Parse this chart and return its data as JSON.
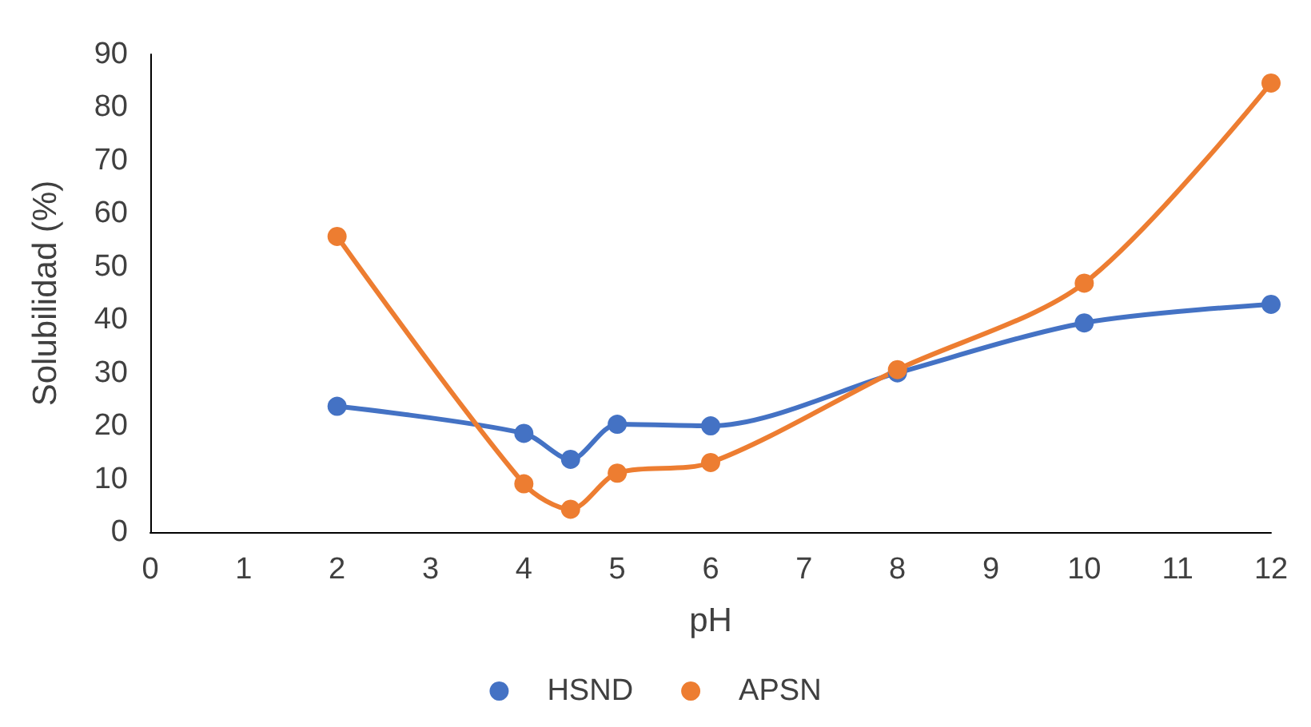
{
  "chart_data": {
    "type": "line",
    "xlabel": "pH",
    "ylabel": "Solubilidad (%)",
    "x": [
      2,
      4,
      4.5,
      5,
      6,
      8,
      10,
      12
    ],
    "series": [
      {
        "name": "HSND",
        "color": "#4472c4",
        "values": [
          23.7,
          18.6,
          13.7,
          20.3,
          20,
          30,
          39.4,
          42.9
        ]
      },
      {
        "name": "APSN",
        "color": "#ed7d31",
        "values": [
          55.7,
          9.1,
          4.3,
          11.1,
          13.1,
          30.6,
          46.9,
          84.6
        ]
      }
    ],
    "xlim": [
      0,
      12
    ],
    "xticks": [
      0,
      1,
      2,
      3,
      4,
      5,
      6,
      7,
      8,
      9,
      10,
      11,
      12
    ],
    "ylim": [
      0,
      90
    ],
    "yticks": [
      0,
      10,
      20,
      30,
      40,
      50,
      60,
      70,
      80,
      90
    ],
    "grid": false,
    "legend": "bottom",
    "marker": "circle",
    "line_style": "solid"
  }
}
